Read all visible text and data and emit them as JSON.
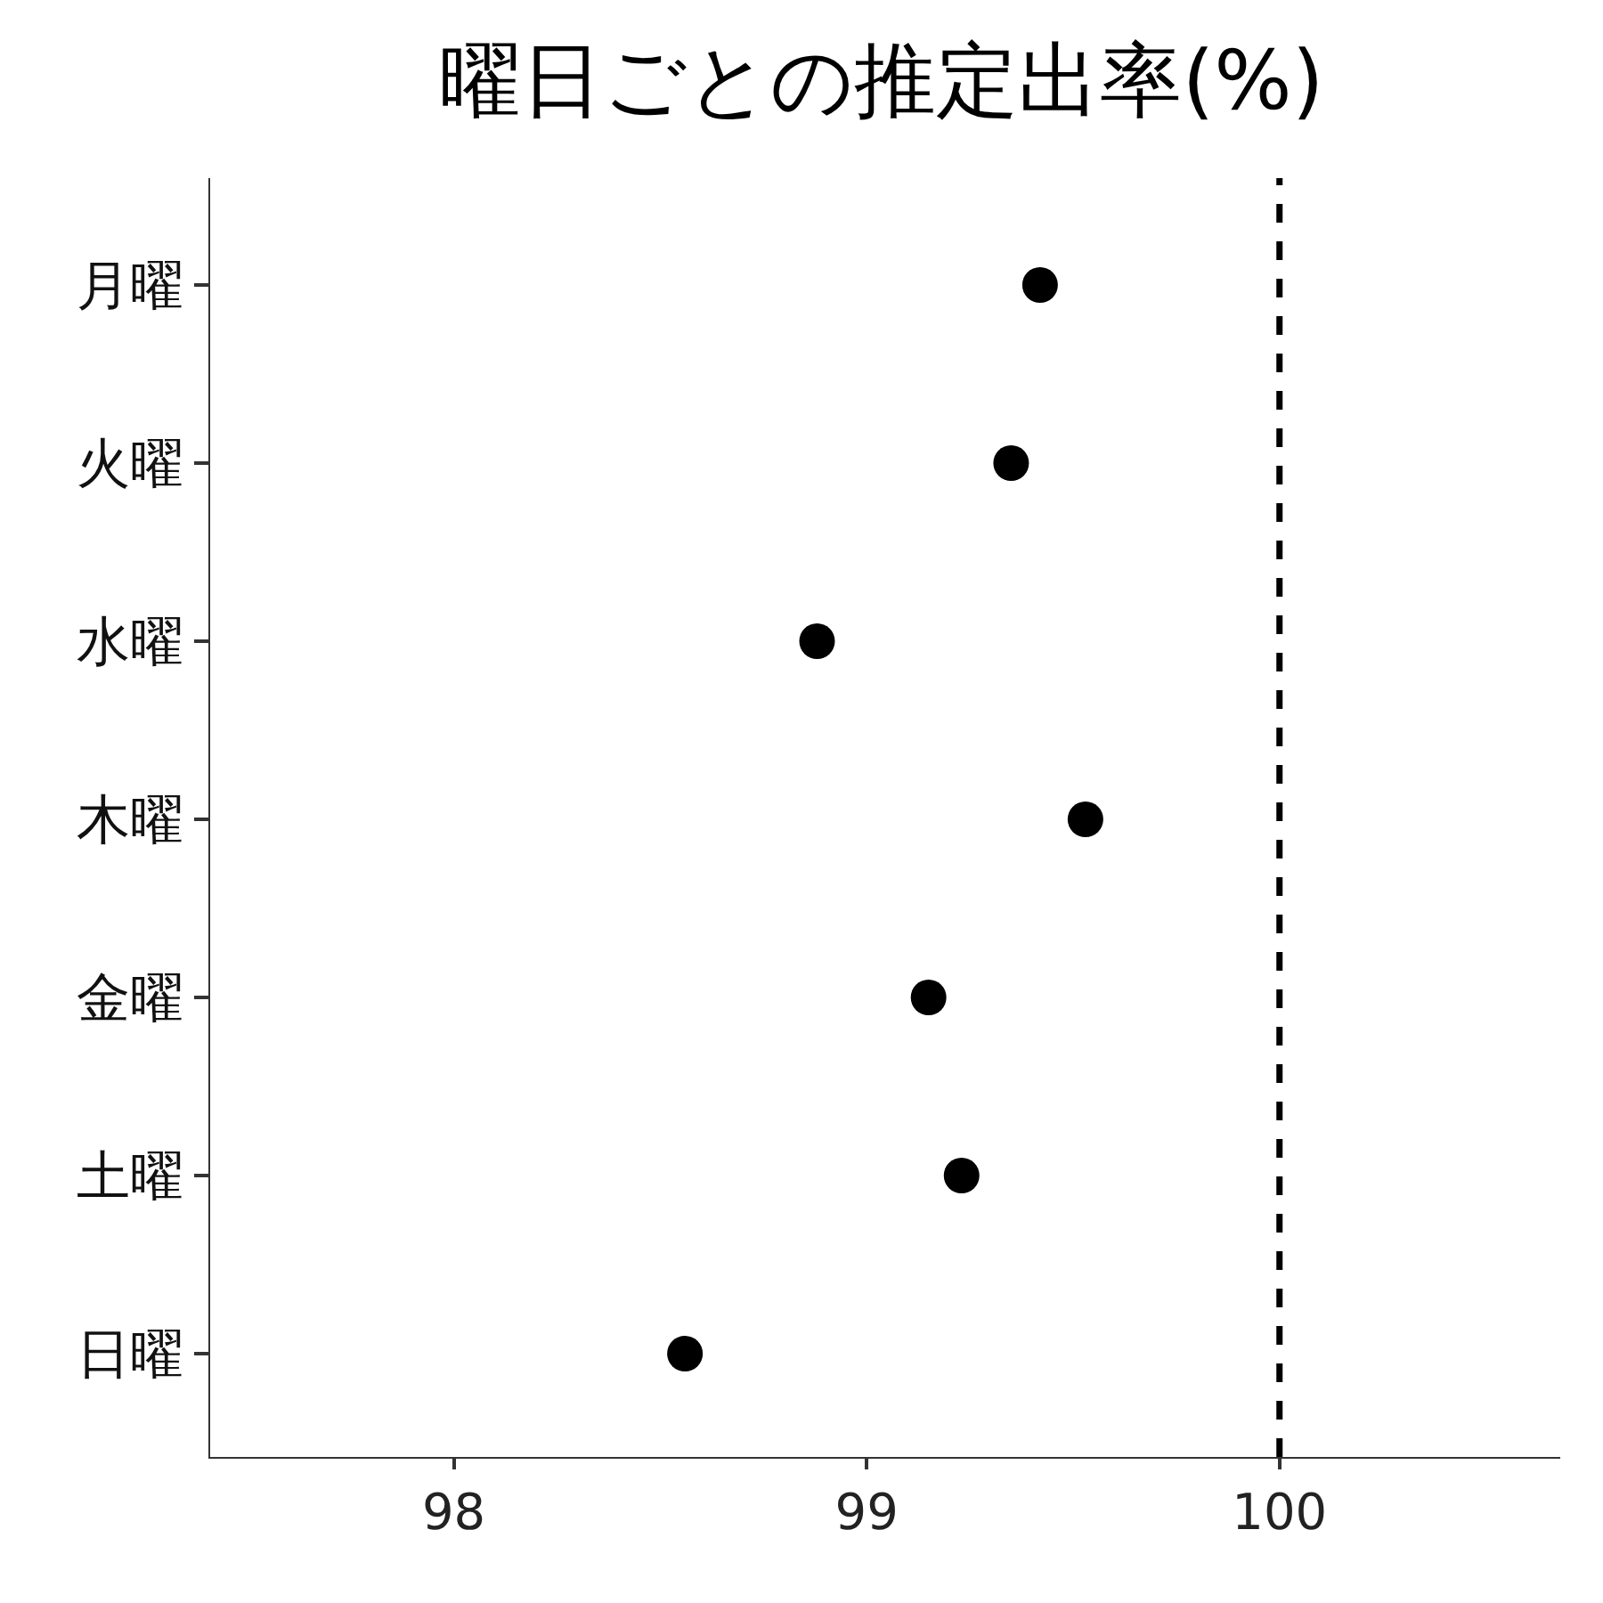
{
  "chart_data": {
    "type": "scatter",
    "title": "曜日ごとの推定出率(%)",
    "orientation": "horizontal",
    "categories": [
      "月曜",
      "火曜",
      "水曜",
      "木曜",
      "金曜",
      "土曜",
      "日曜"
    ],
    "values": [
      99.42,
      99.35,
      98.88,
      99.53,
      99.15,
      99.23,
      98.56
    ],
    "color": "#000000",
    "marker": "circle",
    "xlim": [
      97.41,
      100.68
    ],
    "xticks": [
      98,
      99,
      100
    ],
    "ref_lines": [
      {
        "axis": "x",
        "value": 100,
        "color": "#000000",
        "line_style": "dashed"
      }
    ],
    "legend": false
  }
}
